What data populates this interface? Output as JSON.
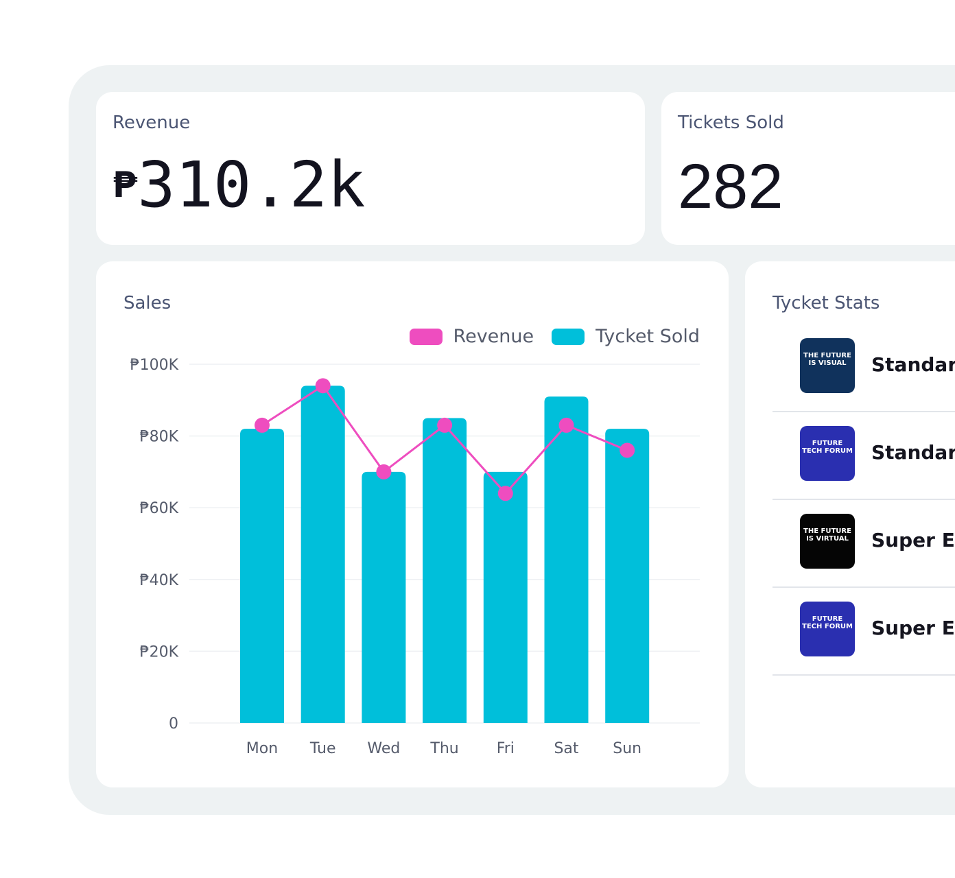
{
  "revenue_card": {
    "label": "Revenue",
    "value": "₱310.2k",
    "currency": "₱",
    "amount": "310.2k"
  },
  "tickets_card": {
    "label": "Tickets Sold",
    "value": "282"
  },
  "sales_card": {
    "title": "Sales"
  },
  "colors": {
    "revenue": "#ee4dbf",
    "tickets": "#00bfda",
    "panel": "#eef2f3"
  },
  "chart_data": {
    "type": "bar",
    "categories": [
      "Mon",
      "Tue",
      "Wed",
      "Thu",
      "Fri",
      "Sat",
      "Sun"
    ],
    "series": [
      {
        "name": "Tycket Sold",
        "type": "bar",
        "values": [
          82,
          94,
          70,
          85,
          70,
          91,
          82
        ]
      },
      {
        "name": "Revenue",
        "type": "line",
        "values": [
          83,
          94,
          70,
          83,
          64,
          83,
          76
        ]
      }
    ],
    "y_ticks": [
      "0",
      "₱20K",
      "₱40K",
      "₱60K",
      "₱80K",
      "₱100K"
    ],
    "ylim": [
      0,
      100
    ],
    "y_unit": "K",
    "grid": true,
    "legend": "top-right"
  },
  "ticket_stats": {
    "title": "Tycket Stats",
    "items": [
      {
        "name": "Standard",
        "thumb_text": "THE FUTURE IS VISUAL",
        "thumb_bg": "#10325c"
      },
      {
        "name": "Standard",
        "thumb_text": "FUTURE TECH FORUM",
        "thumb_bg": "#2a2fb0"
      },
      {
        "name": "Super Early",
        "thumb_text": "THE FUTURE IS VIRTUAL",
        "thumb_bg": "#050505"
      },
      {
        "name": "Super Early",
        "thumb_text": "FUTURE TECH FORUM",
        "thumb_bg": "#2a2fb0"
      }
    ]
  }
}
